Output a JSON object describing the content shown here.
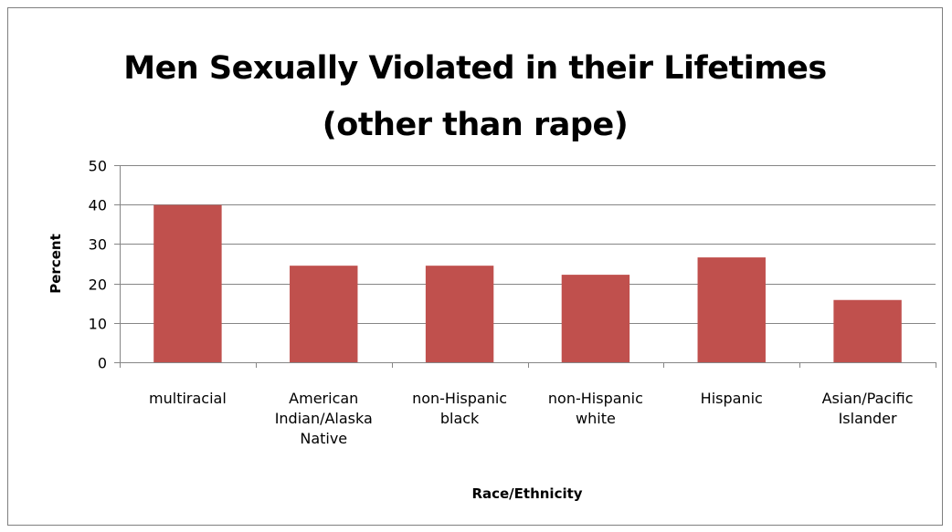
{
  "chart_data": {
    "type": "bar",
    "title_lines": [
      "Men Sexually Violated in their Lifetimes",
      "(other than rape)"
    ],
    "title": "Men Sexually Violated in their Lifetimes (other than rape)",
    "xlabel": "Race/Ethnicity",
    "ylabel": "Percent",
    "ylim": [
      0,
      50
    ],
    "yticks": [
      0,
      10,
      20,
      30,
      40,
      50
    ],
    "grid": true,
    "legend": "none",
    "bar_color": "#c0504d",
    "categories": [
      [
        "multiracial"
      ],
      [
        "American",
        "Indian/Alaska",
        "Native"
      ],
      [
        "non-Hispanic",
        "black"
      ],
      [
        "non-Hispanic",
        "white"
      ],
      [
        "Hispanic"
      ],
      [
        "Asian/Pacific",
        "Islander"
      ]
    ],
    "values": [
      39.9,
      24.5,
      24.5,
      22.2,
      26.6,
      15.8
    ]
  }
}
